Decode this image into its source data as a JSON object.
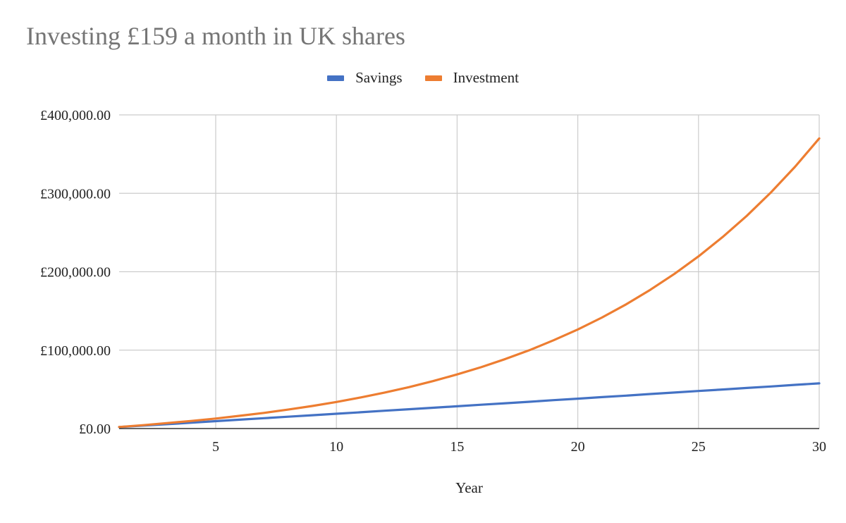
{
  "chart_data": {
    "type": "line",
    "title": "Investing £159 a month in UK shares",
    "xlabel": "Year",
    "ylabel": "",
    "xlim": [
      1,
      30
    ],
    "ylim": [
      0,
      400000
    ],
    "x_ticks": [
      5,
      10,
      15,
      20,
      25,
      30
    ],
    "y_ticks": [
      0,
      100000,
      200000,
      300000,
      400000
    ],
    "y_tick_labels": [
      "£0.00",
      "£100,000.00",
      "£200,000.00",
      "£300,000.00",
      "£400,000.00"
    ],
    "grid": true,
    "legend_position": "top-center",
    "x": [
      1,
      2,
      3,
      4,
      5,
      6,
      7,
      8,
      9,
      10,
      11,
      12,
      13,
      14,
      15,
      16,
      17,
      18,
      19,
      20,
      21,
      22,
      23,
      24,
      25,
      26,
      27,
      28,
      29,
      30
    ],
    "series": [
      {
        "name": "Savings",
        "color": "#4472c4",
        "values": [
          1900,
          3800,
          5600,
          7500,
          9400,
          11300,
          13200,
          15100,
          17000,
          18900,
          20800,
          22700,
          24600,
          26500,
          28400,
          30400,
          32300,
          34200,
          36200,
          38100,
          40100,
          42000,
          44000,
          45900,
          47900,
          49800,
          51800,
          53700,
          55700,
          57600
        ]
      },
      {
        "name": "Investment",
        "color": "#ed7d31",
        "values": [
          2000,
          4300,
          7000,
          9700,
          12800,
          16300,
          20000,
          24200,
          28800,
          33900,
          39600,
          45900,
          52800,
          60500,
          69000,
          78300,
          88700,
          100000,
          112600,
          126400,
          141600,
          158400,
          176900,
          197200,
          219600,
          244200,
          271300,
          301100,
          333900,
          370000
        ]
      }
    ]
  }
}
